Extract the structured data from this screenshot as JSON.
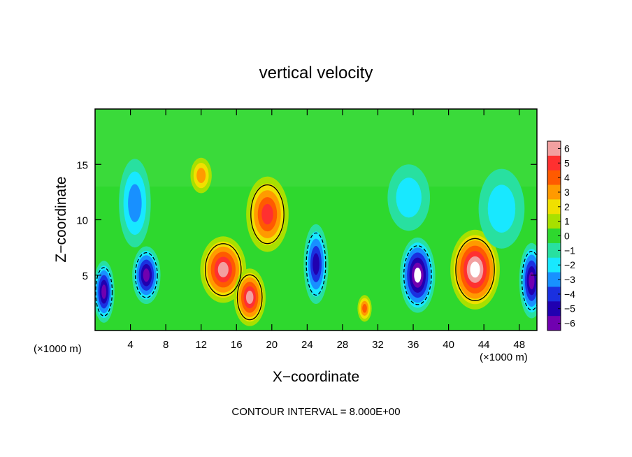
{
  "chart_data": {
    "type": "heatmap",
    "title": "vertical velocity",
    "xlabel": "X−coordinate",
    "ylabel": "Z−coordinate",
    "x_unit_left": "(×1000 m)",
    "x_unit_right": "(×1000 m)",
    "xlim": [
      0,
      50
    ],
    "ylim": [
      0,
      20
    ],
    "x_ticks": [
      4,
      8,
      12,
      16,
      20,
      24,
      28,
      32,
      36,
      40,
      44,
      48
    ],
    "y_ticks": [
      5,
      10,
      15
    ],
    "colorbar": {
      "ticks": [
        "6",
        "5",
        "4",
        "3",
        "2",
        "1",
        "0",
        "−1",
        "−2",
        "−3",
        "−4",
        "−5",
        "−6"
      ],
      "colors": [
        "#f2a0a0",
        "#ff3030",
        "#ff5a00",
        "#ff9a00",
        "#f0e000",
        "#a8e000",
        "#2ed82e",
        "#28e0a0",
        "#18e8ff",
        "#1890ff",
        "#1a30e0",
        "#2000b0",
        "#7000b0"
      ]
    },
    "footnote": "CONTOUR INTERVAL = 8.000E+00",
    "features": [
      {
        "x": 1.0,
        "z": 3.5,
        "sign": "down",
        "rx": 1.2,
        "rz": 2.8,
        "peak": 8
      },
      {
        "x": 5.8,
        "z": 5.0,
        "sign": "down",
        "rx": 1.6,
        "rz": 2.6,
        "peak": 8
      },
      {
        "x": 4.5,
        "z": 11.5,
        "sign": "down",
        "rx": 1.8,
        "rz": 4.0,
        "peak": 4
      },
      {
        "x": 14.5,
        "z": 5.5,
        "sign": "up",
        "rx": 2.6,
        "rz": 3.0,
        "peak": 8
      },
      {
        "x": 17.5,
        "z": 3.0,
        "sign": "up",
        "rx": 1.8,
        "rz": 2.6,
        "peak": 8
      },
      {
        "x": 19.5,
        "z": 10.5,
        "sign": "up",
        "rx": 2.4,
        "rz": 3.4,
        "peak": 7
      },
      {
        "x": 12.0,
        "z": 14.0,
        "sign": "up",
        "rx": 1.2,
        "rz": 1.6,
        "peak": 4
      },
      {
        "x": 25.0,
        "z": 6.0,
        "sign": "down",
        "rx": 1.4,
        "rz": 3.6,
        "peak": 7
      },
      {
        "x": 30.5,
        "z": 2.0,
        "sign": "up",
        "rx": 0.8,
        "rz": 1.2,
        "peak": 5
      },
      {
        "x": 36.5,
        "z": 5.0,
        "sign": "down",
        "rx": 2.0,
        "rz": 3.4,
        "peak": 9
      },
      {
        "x": 43.0,
        "z": 5.5,
        "sign": "up",
        "rx": 2.8,
        "rz": 3.6,
        "peak": 9
      },
      {
        "x": 49.4,
        "z": 4.5,
        "sign": "down",
        "rx": 1.4,
        "rz": 3.4,
        "peak": 8
      },
      {
        "x": 46.0,
        "z": 11.0,
        "sign": "down",
        "rx": 2.6,
        "rz": 3.6,
        "peak": 3
      },
      {
        "x": 35.5,
        "z": 12.0,
        "sign": "down",
        "rx": 2.4,
        "rz": 3.0,
        "peak": 3
      }
    ]
  }
}
